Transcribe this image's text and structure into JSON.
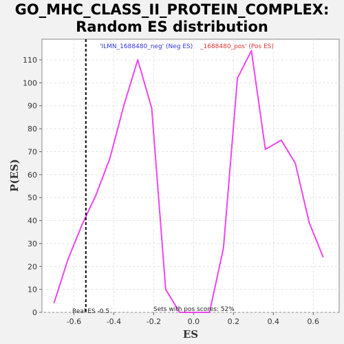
{
  "title_lines": [
    "GO_MHC_CLASS_II_PROTEIN_COMPLEX:",
    "Random ES distribution"
  ],
  "legend": {
    "neg": "'ILMN_1688480_neg' (Neg ES)",
    "pos": "_1688480_pos' (Pos ES)"
  },
  "annotations": {
    "real_es": "Real ES -0.5",
    "sets_pos": "Sets with pos scores: 52%"
  },
  "colors": {
    "line": "#ee44ee",
    "neg_legend": "#3333dd",
    "pos_legend": "#dd3333",
    "real_es_line": "#000000"
  },
  "chart_data": {
    "type": "line",
    "xlabel": "ES",
    "ylabel": "P(ES)",
    "xlim": [
      -0.76,
      0.73
    ],
    "ylim": [
      0,
      119
    ],
    "xticks": [
      -0.6,
      -0.4,
      -0.2,
      0.0,
      0.2,
      0.4,
      0.6
    ],
    "xtick_labels": [
      "-0.6",
      "-0.4",
      "-0.2",
      "0.0",
      "0.2",
      "0.4",
      "0.6"
    ],
    "yticks": [
      0,
      10,
      20,
      30,
      40,
      50,
      60,
      70,
      80,
      90,
      100,
      110
    ],
    "ytick_labels": [
      "0",
      "10",
      "20",
      "30",
      "40",
      "50",
      "60",
      "70",
      "80",
      "90",
      "100",
      "110"
    ],
    "grid": true,
    "real_es": -0.54,
    "series": [
      {
        "x": [
          -0.7,
          -0.63,
          -0.56,
          -0.49,
          -0.42,
          -0.35,
          -0.28,
          -0.21,
          -0.14,
          -0.07,
          0.0,
          0.08,
          0.15,
          0.22,
          0.29,
          0.36,
          0.44,
          0.51,
          0.58,
          0.65
        ],
        "y": [
          4,
          23,
          38,
          51,
          67,
          90,
          110,
          89,
          10,
          0,
          0,
          0,
          28,
          102,
          114,
          71,
          75,
          65,
          39,
          24
        ]
      }
    ]
  }
}
